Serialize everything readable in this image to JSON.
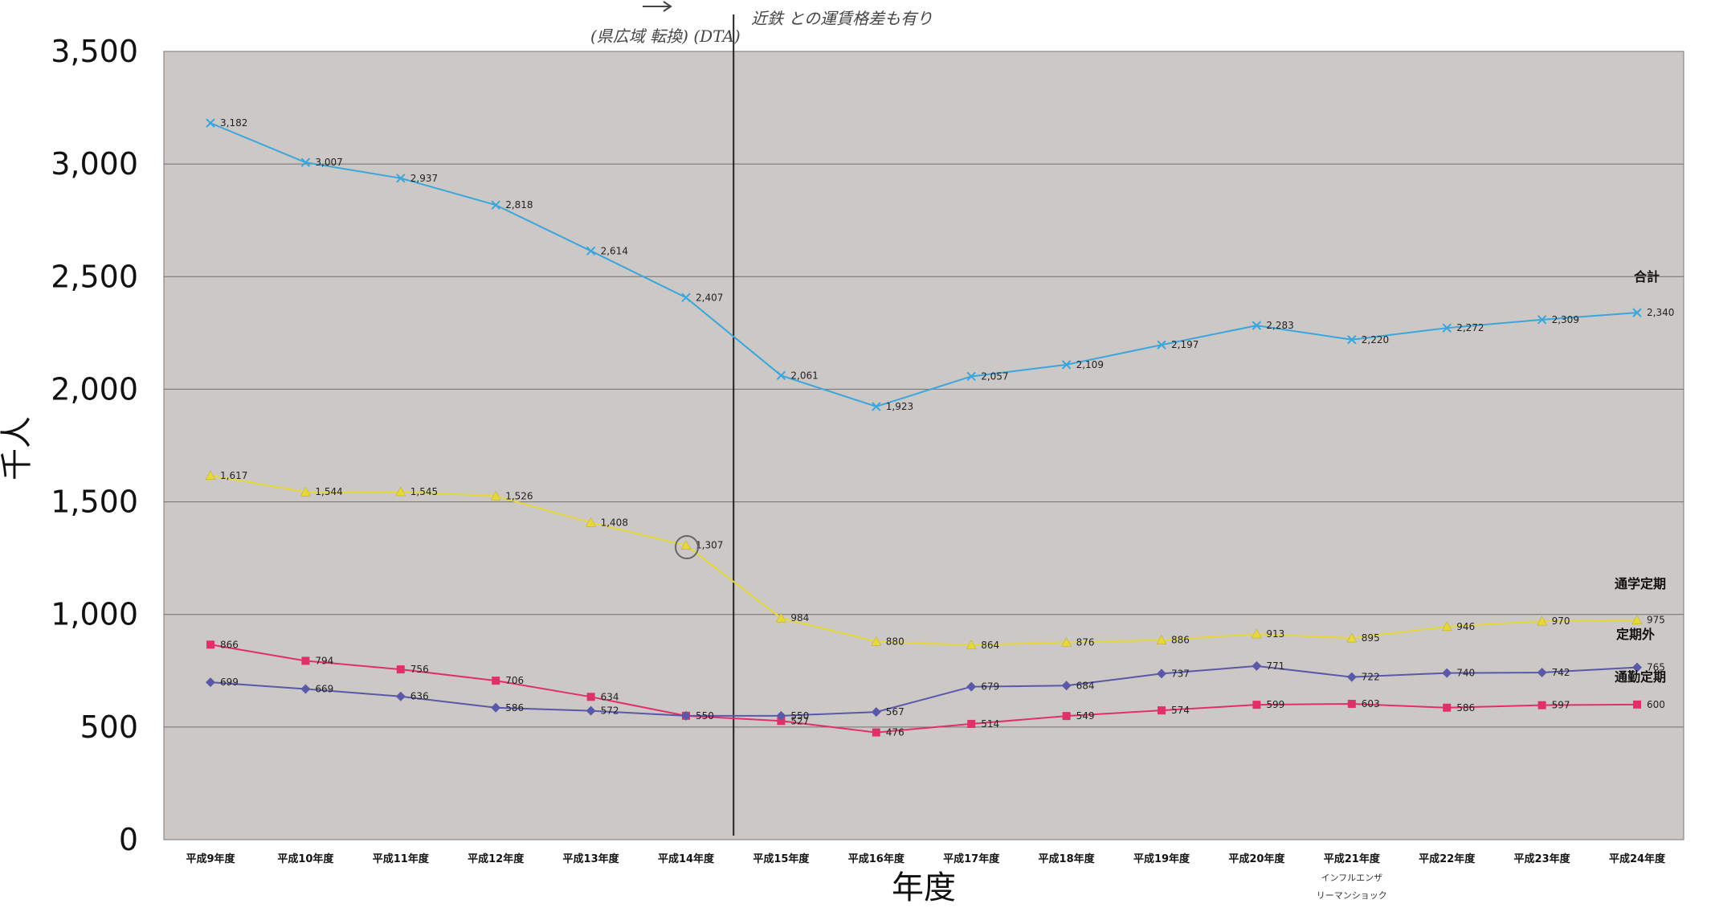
{
  "chart_data": {
    "type": "line",
    "categories": [
      "平成9年度",
      "平成10年度",
      "平成11年度",
      "平成12年度",
      "平成13年度",
      "平成14年度",
      "平成15年度",
      "平成16年度",
      "平成17年度",
      "平成18年度",
      "平成19年度",
      "平成20年度",
      "平成21年度",
      "平成22年度",
      "平成23年度",
      "平成24年度"
    ],
    "category_notes": {
      "12": [
        "インフルエンザ",
        "リーマンショック"
      ]
    },
    "xlabel": "年度",
    "ylabel": "千人",
    "ylim": [
      0,
      3500
    ],
    "yticks": [
      0,
      500,
      1000,
      1500,
      2000,
      2500,
      3000,
      3500
    ],
    "ytick_labels": [
      "0",
      "500",
      "1,000",
      "1,500",
      "2,000",
      "2,500",
      "3,000",
      "3,500"
    ],
    "grid": true,
    "vertical_marker_category": 5.5,
    "plot_background": "#ccc8c6",
    "series": [
      {
        "name": "合計",
        "color": "#3aa6dc",
        "marker": "x",
        "values": [
          3182,
          3007,
          2937,
          2818,
          2614,
          2407,
          2061,
          1923,
          2057,
          2109,
          2197,
          2283,
          2220,
          2272,
          2309,
          2340
        ],
        "labels": [
          "3,182",
          "3,007",
          "2,937",
          "2,818",
          "2,614",
          "2,407",
          "2,061",
          "1,923",
          "2,057",
          "2,109",
          "2,197",
          "2,283",
          "2,220",
          "2,272",
          "2,309",
          "2,340"
        ]
      },
      {
        "name": "通学定期",
        "color": "#e6d83a",
        "marker": "triangle",
        "values": [
          1617,
          1544,
          1545,
          1526,
          1408,
          1307,
          984,
          880,
          864,
          876,
          886,
          913,
          895,
          946,
          970,
          975
        ],
        "labels": [
          "1,617",
          "1,544",
          "1,545",
          "1,526",
          "1,408",
          "1,307",
          "984",
          "880",
          "864",
          "876",
          "886",
          "913",
          "895",
          "946",
          "970",
          "975"
        ]
      },
      {
        "name": "定期外",
        "color": "#e0306a",
        "marker": "square",
        "values": [
          866,
          794,
          756,
          706,
          634,
          550,
          527,
          476,
          514,
          549,
          574,
          599,
          603,
          586,
          597,
          600
        ],
        "labels": [
          "866",
          "794",
          "756",
          "706",
          "634",
          "",
          "527",
          "476",
          "514",
          "549",
          "574",
          "599",
          "603",
          "586",
          "597",
          "600"
        ]
      },
      {
        "name": "通勤定期",
        "color": "#5a58a8",
        "marker": "diamond",
        "values": [
          699,
          669,
          636,
          586,
          572,
          550,
          550,
          567,
          679,
          684,
          737,
          771,
          722,
          740,
          742,
          765
        ],
        "labels": [
          "699",
          "669",
          "636",
          "586",
          "572",
          "550",
          "550",
          "567",
          "679",
          "684",
          "737",
          "771",
          "722",
          "740",
          "742",
          "765"
        ]
      }
    ],
    "handwritten_notes": [
      "(県広域 転換) (DTA)",
      "近鉄 との運賃格差も有り"
    ]
  }
}
